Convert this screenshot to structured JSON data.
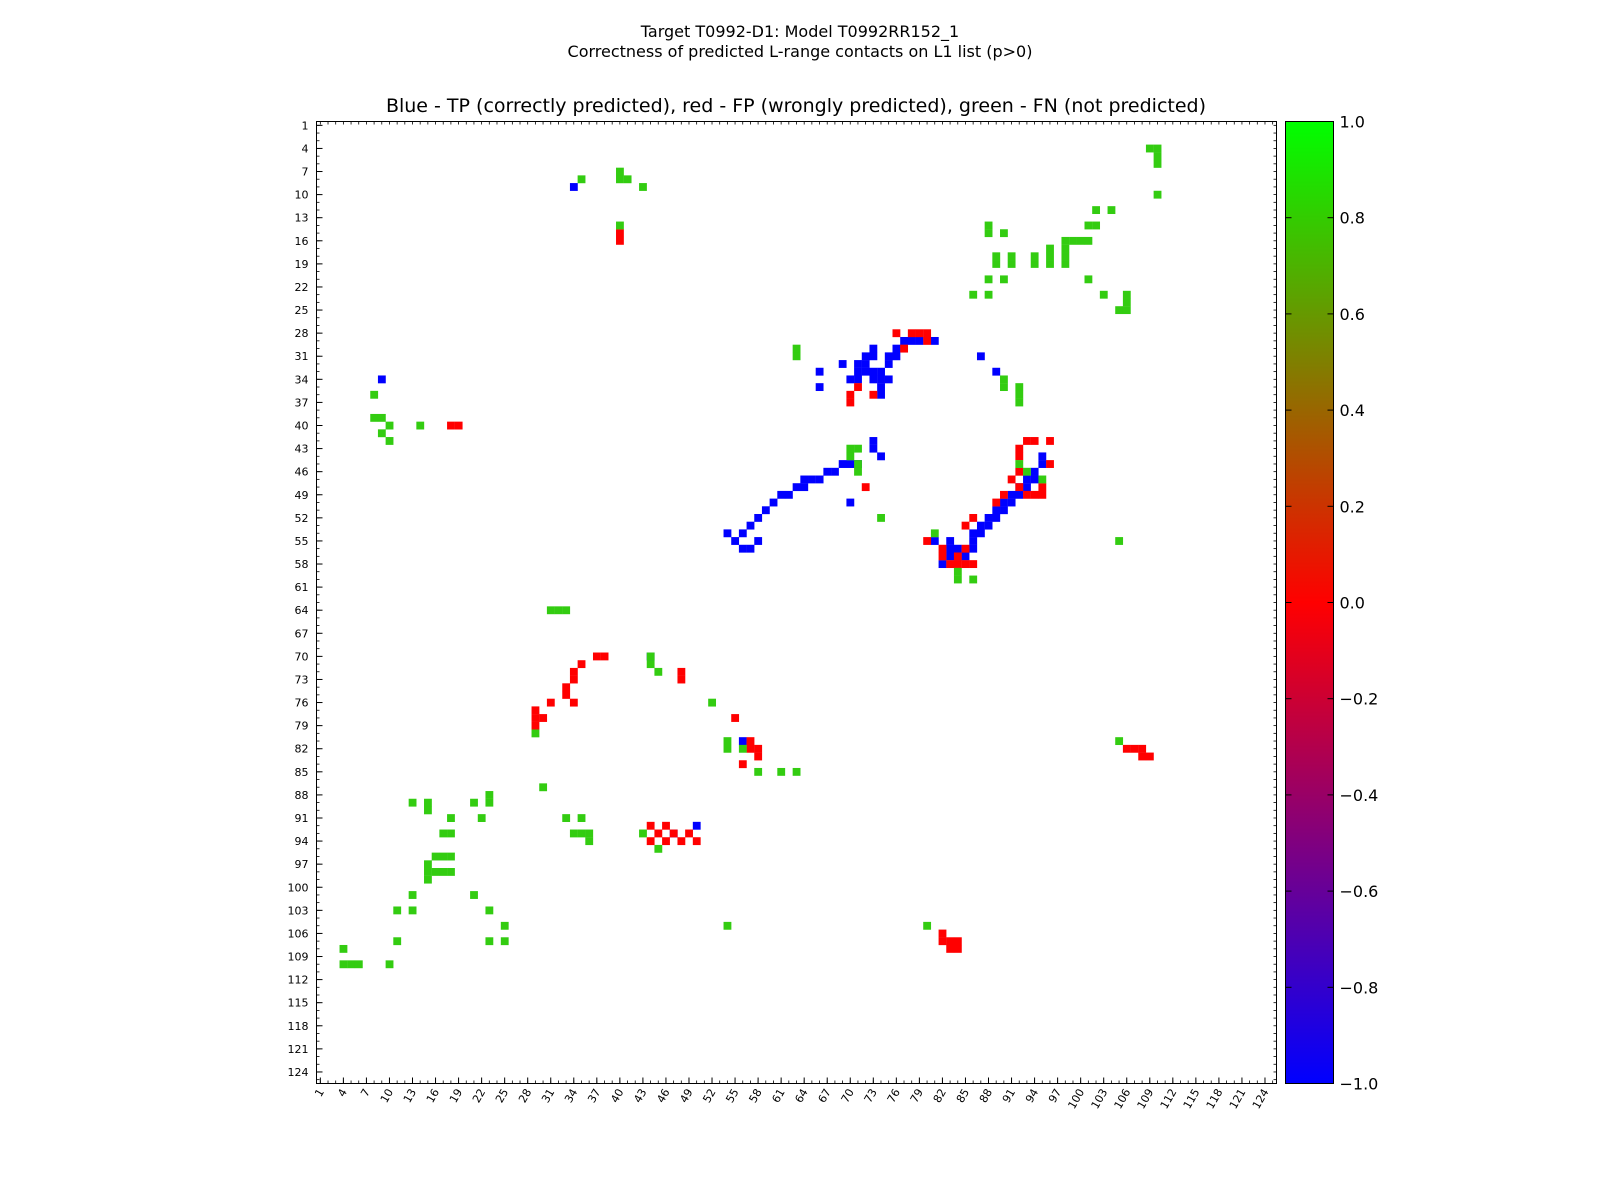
{
  "figure": {
    "suptitle_line1": "Target T0992-D1: Model T0992RR152_1",
    "suptitle_line2": "Correctness of predicted L-range contacts on L1 list (p>0)"
  },
  "colors": {
    "tp": "#0000ff",
    "fp": "#ff0000",
    "fn": "#33cc11",
    "colorbar_stops": [
      "#0000ff",
      "#ff0000",
      "#00ff00"
    ]
  },
  "chart_data": {
    "type": "heatmap",
    "title": "Blue - TP (correctly predicted), red - FP (wrongly predicted), green - FN (not predicted)",
    "xlabel": "",
    "ylabel": "",
    "xlim": [
      1,
      125
    ],
    "ylim": [
      1,
      125
    ],
    "y_axis_inverted": true,
    "grid": false,
    "x_ticks": [
      "1",
      "4",
      "7",
      "10",
      "13",
      "16",
      "19",
      "22",
      "25",
      "28",
      "31",
      "34",
      "37",
      "40",
      "43",
      "46",
      "49",
      "52",
      "55",
      "58",
      "61",
      "64",
      "67",
      "70",
      "73",
      "76",
      "79",
      "82",
      "85",
      "88",
      "91",
      "94",
      "97",
      "100",
      "103",
      "106",
      "109",
      "112",
      "115",
      "118",
      "121",
      "124"
    ],
    "y_ticks": [
      "1",
      "4",
      "7",
      "10",
      "13",
      "16",
      "19",
      "22",
      "25",
      "28",
      "31",
      "34",
      "37",
      "40",
      "43",
      "46",
      "49",
      "52",
      "55",
      "58",
      "61",
      "64",
      "67",
      "70",
      "73",
      "76",
      "79",
      "82",
      "85",
      "88",
      "91",
      "94",
      "97",
      "100",
      "103",
      "106",
      "109",
      "112",
      "115",
      "118",
      "121",
      "124"
    ],
    "colorbar": {
      "range": [
        -1.0,
        1.0
      ],
      "ticks": [
        "1.0",
        "0.8",
        "0.6",
        "0.4",
        "0.2",
        "0.0",
        "−0.2",
        "−0.4",
        "−0.6",
        "−0.8",
        "−1.0"
      ]
    },
    "legend": [
      {
        "name": "TP (correctly predicted)",
        "value": -1.0
      },
      {
        "name": "FP (wrongly predicted)",
        "value": 0.0
      },
      {
        "name": "FN (not predicted)",
        "value": 1.0
      }
    ],
    "series": [
      {
        "name": "TP",
        "value": -1.0,
        "cells": [
          [
            34,
            9
          ],
          [
            69,
            32
          ],
          [
            66,
            35
          ],
          [
            74,
            33
          ],
          [
            75,
            32
          ],
          [
            75,
            31
          ],
          [
            76,
            31
          ],
          [
            77,
            29
          ],
          [
            73,
            33
          ],
          [
            73,
            34
          ],
          [
            74,
            34
          ],
          [
            74,
            35
          ],
          [
            74,
            36
          ],
          [
            73,
            30
          ],
          [
            73,
            31
          ],
          [
            72,
            31
          ],
          [
            72,
            32
          ],
          [
            71,
            32
          ],
          [
            71,
            33
          ],
          [
            72,
            33
          ],
          [
            71,
            34
          ],
          [
            70,
            34
          ],
          [
            75,
            34
          ],
          [
            76,
            30
          ],
          [
            77,
            30
          ],
          [
            78,
            29
          ],
          [
            79,
            29
          ],
          [
            81,
            29
          ],
          [
            87,
            31
          ],
          [
            89,
            33
          ],
          [
            66,
            33
          ],
          [
            54,
            54
          ],
          [
            55,
            55
          ],
          [
            56,
            56
          ],
          [
            57,
            56
          ],
          [
            58,
            55
          ],
          [
            56,
            54
          ],
          [
            57,
            53
          ],
          [
            58,
            52
          ],
          [
            59,
            51
          ],
          [
            60,
            50
          ],
          [
            61,
            49
          ],
          [
            62,
            49
          ],
          [
            63,
            48
          ],
          [
            64,
            48
          ],
          [
            65,
            47
          ],
          [
            66,
            47
          ],
          [
            67,
            46
          ],
          [
            68,
            46
          ],
          [
            69,
            45
          ],
          [
            70,
            45
          ],
          [
            71,
            45
          ],
          [
            73,
            42
          ],
          [
            73,
            43
          ],
          [
            74,
            44
          ],
          [
            64,
            47
          ],
          [
            47,
            93
          ],
          [
            70,
            50
          ],
          [
            83,
            55
          ],
          [
            83,
            56
          ],
          [
            83,
            57
          ],
          [
            84,
            56
          ],
          [
            84,
            57
          ],
          [
            85,
            57
          ],
          [
            86,
            55
          ],
          [
            86,
            56
          ],
          [
            86,
            54
          ],
          [
            87,
            53
          ],
          [
            87,
            54
          ],
          [
            88,
            52
          ],
          [
            88,
            53
          ],
          [
            89,
            51
          ],
          [
            89,
            52
          ],
          [
            90,
            51
          ],
          [
            90,
            50
          ],
          [
            91,
            50
          ],
          [
            91,
            49
          ],
          [
            92,
            48
          ],
          [
            92,
            49
          ],
          [
            93,
            48
          ],
          [
            93,
            47
          ],
          [
            94,
            47
          ],
          [
            94,
            46
          ],
          [
            95,
            45
          ],
          [
            95,
            44
          ],
          [
            81,
            55
          ],
          [
            82,
            58
          ],
          [
            9,
            34
          ],
          [
            44,
            70
          ],
          [
            56,
            81
          ],
          [
            50,
            92
          ]
        ]
      },
      {
        "name": "FP",
        "value": 0.0,
        "cells": [
          [
            40,
            15
          ],
          [
            40,
            16
          ],
          [
            18,
            40
          ],
          [
            19,
            40
          ],
          [
            29,
            78
          ],
          [
            29,
            79
          ],
          [
            30,
            78
          ],
          [
            31,
            76
          ],
          [
            34,
            72
          ],
          [
            34,
            73
          ],
          [
            35,
            71
          ],
          [
            33,
            75
          ],
          [
            34,
            76
          ],
          [
            76,
            28
          ],
          [
            78,
            28
          ],
          [
            79,
            28
          ],
          [
            80,
            28
          ],
          [
            80,
            29
          ],
          [
            77,
            30
          ],
          [
            71,
            35
          ],
          [
            70,
            36
          ],
          [
            70,
            37
          ],
          [
            73,
            36
          ],
          [
            72,
            48
          ],
          [
            37,
            70
          ],
          [
            38,
            70
          ],
          [
            48,
            73
          ],
          [
            80,
            55
          ],
          [
            82,
            56
          ],
          [
            82,
            57
          ],
          [
            83,
            58
          ],
          [
            84,
            58
          ],
          [
            85,
            58
          ],
          [
            86,
            58
          ],
          [
            85,
            53
          ],
          [
            86,
            52
          ],
          [
            89,
            50
          ],
          [
            90,
            49
          ],
          [
            91,
            47
          ],
          [
            92,
            43
          ],
          [
            92,
            44
          ],
          [
            92,
            46
          ],
          [
            92,
            48
          ],
          [
            93,
            49
          ],
          [
            94,
            49
          ],
          [
            95,
            49
          ],
          [
            95,
            48
          ],
          [
            93,
            42
          ],
          [
            94,
            42
          ],
          [
            96,
            42
          ],
          [
            96,
            45
          ],
          [
            57,
            81
          ],
          [
            57,
            82
          ],
          [
            58,
            82
          ],
          [
            58,
            83
          ],
          [
            56,
            84
          ],
          [
            55,
            78
          ],
          [
            44,
            92
          ],
          [
            46,
            92
          ],
          [
            45,
            93
          ],
          [
            46,
            94
          ],
          [
            47,
            93
          ],
          [
            48,
            94
          ],
          [
            44,
            94
          ],
          [
            49,
            93
          ],
          [
            50,
            94
          ],
          [
            48,
            72
          ],
          [
            33,
            74
          ],
          [
            29,
            77
          ],
          [
            106,
            82
          ],
          [
            107,
            82
          ],
          [
            108,
            82
          ],
          [
            108,
            83
          ],
          [
            109,
            83
          ],
          [
            82,
            106
          ],
          [
            82,
            107
          ],
          [
            83,
            107
          ],
          [
            83,
            108
          ],
          [
            84,
            107
          ],
          [
            84,
            108
          ],
          [
            84,
            57
          ],
          [
            85,
            56
          ]
        ]
      },
      {
        "name": "FN",
        "value": 1.0,
        "cells": [
          [
            35,
            8
          ],
          [
            40,
            7
          ],
          [
            40,
            8
          ],
          [
            41,
            8
          ],
          [
            43,
            9
          ],
          [
            40,
            14
          ],
          [
            109,
            4
          ],
          [
            110,
            4
          ],
          [
            110,
            5
          ],
          [
            110,
            6
          ],
          [
            110,
            10
          ],
          [
            104,
            12
          ],
          [
            105,
            25
          ],
          [
            106,
            24
          ],
          [
            106,
            25
          ],
          [
            88,
            14
          ],
          [
            88,
            15
          ],
          [
            90,
            15
          ],
          [
            101,
            14
          ],
          [
            102,
            12
          ],
          [
            102,
            14
          ],
          [
            89,
            18
          ],
          [
            89,
            19
          ],
          [
            91,
            18
          ],
          [
            91,
            19
          ],
          [
            94,
            18
          ],
          [
            94,
            19
          ],
          [
            96,
            17
          ],
          [
            96,
            18
          ],
          [
            96,
            19
          ],
          [
            98,
            16
          ],
          [
            98,
            17
          ],
          [
            99,
            16
          ],
          [
            100,
            16
          ],
          [
            101,
            16
          ],
          [
            98,
            18
          ],
          [
            98,
            19
          ],
          [
            88,
            21
          ],
          [
            90,
            21
          ],
          [
            101,
            21
          ],
          [
            103,
            23
          ],
          [
            106,
            23
          ],
          [
            86,
            23
          ],
          [
            88,
            23
          ],
          [
            63,
            30
          ],
          [
            63,
            31
          ],
          [
            90,
            34
          ],
          [
            90,
            35
          ],
          [
            92,
            35
          ],
          [
            92,
            36
          ],
          [
            92,
            37
          ],
          [
            70,
            43
          ],
          [
            71,
            43
          ],
          [
            70,
            44
          ],
          [
            71,
            45
          ],
          [
            92,
            45
          ],
          [
            93,
            46
          ],
          [
            95,
            47
          ],
          [
            71,
            46
          ],
          [
            74,
            52
          ],
          [
            81,
            54
          ],
          [
            84,
            59
          ],
          [
            84,
            60
          ],
          [
            86,
            60
          ],
          [
            105,
            55
          ],
          [
            8,
            36
          ],
          [
            8,
            39
          ],
          [
            9,
            39
          ],
          [
            10,
            40
          ],
          [
            9,
            41
          ],
          [
            10,
            42
          ],
          [
            14,
            40
          ],
          [
            31,
            64
          ],
          [
            32,
            64
          ],
          [
            33,
            64
          ],
          [
            44,
            70
          ],
          [
            44,
            71
          ],
          [
            45,
            72
          ],
          [
            52,
            76
          ],
          [
            29,
            80
          ],
          [
            54,
            82
          ],
          [
            58,
            85
          ],
          [
            61,
            85
          ],
          [
            63,
            85
          ],
          [
            56,
            82
          ],
          [
            30,
            87
          ],
          [
            45,
            95
          ],
          [
            13,
            89
          ],
          [
            15,
            89
          ],
          [
            21,
            89
          ],
          [
            23,
            89
          ],
          [
            15,
            90
          ],
          [
            18,
            91
          ],
          [
            22,
            91
          ],
          [
            17,
            93
          ],
          [
            18,
            93
          ],
          [
            16,
            96
          ],
          [
            17,
            96
          ],
          [
            18,
            96
          ],
          [
            15,
            97
          ],
          [
            15,
            98
          ],
          [
            16,
            98
          ],
          [
            17,
            98
          ],
          [
            18,
            98
          ],
          [
            15,
            99
          ],
          [
            13,
            101
          ],
          [
            21,
            101
          ],
          [
            11,
            103
          ],
          [
            13,
            103
          ],
          [
            23,
            103
          ],
          [
            25,
            105
          ],
          [
            11,
            107
          ],
          [
            23,
            107
          ],
          [
            25,
            107
          ],
          [
            4,
            108
          ],
          [
            4,
            110
          ],
          [
            5,
            110
          ],
          [
            6,
            110
          ],
          [
            10,
            110
          ],
          [
            33,
            91
          ],
          [
            35,
            91
          ],
          [
            34,
            93
          ],
          [
            35,
            93
          ],
          [
            36,
            93
          ],
          [
            54,
            105
          ],
          [
            80,
            105
          ],
          [
            36,
            94
          ],
          [
            23,
            88
          ],
          [
            105,
            81
          ],
          [
            54,
            81
          ],
          [
            43,
            93
          ]
        ]
      }
    ]
  }
}
